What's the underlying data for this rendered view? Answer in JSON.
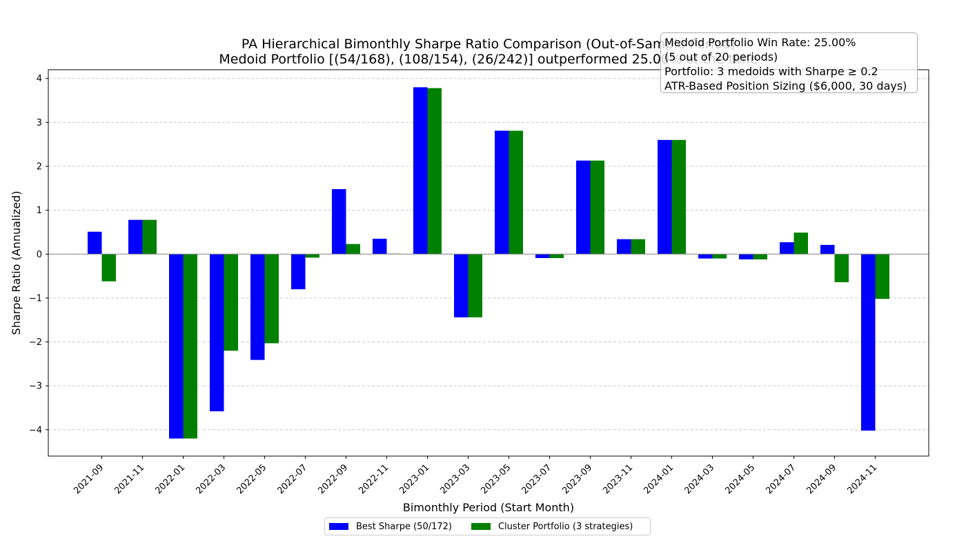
{
  "chart_data": {
    "type": "bar",
    "title": "PA Hierarchical Bimonthly Sharpe Ratio Comparison (Out-of-Sample Period)",
    "subtitle": "Medoid Portfolio [(54/168), (108/154), (26/242)] outperformed 25.00% of the time",
    "xlabel": "Bimonthly Period (Start Month)",
    "ylabel": "Sharpe Ratio (Annualized)",
    "ylim": [
      -4.6,
      4.2
    ],
    "yticks": [
      4,
      3,
      2,
      1,
      0,
      -1,
      -2,
      -3,
      -4
    ],
    "ytick_labels": [
      "4",
      "3",
      "2",
      "1",
      "0",
      "−1",
      "−2",
      "−3",
      "−4"
    ],
    "grid": true,
    "legend_position": "bottom-center",
    "categories": [
      "2021-09",
      "2021-11",
      "2022-01",
      "2022-03",
      "2022-05",
      "2022-07",
      "2022-09",
      "2022-11",
      "2023-01",
      "2023-03",
      "2023-05",
      "2023-07",
      "2023-09",
      "2023-11",
      "2024-01",
      "2024-03",
      "2024-05",
      "2024-07",
      "2024-09",
      "2024-11"
    ],
    "series": [
      {
        "name": "Best Sharpe (50/172)",
        "color": "#0000ff",
        "values": [
          0.51,
          0.78,
          -4.2,
          -3.58,
          -2.41,
          -0.8,
          1.48,
          0.35,
          3.8,
          -1.44,
          2.81,
          -0.09,
          2.13,
          0.34,
          2.6,
          -0.1,
          -0.12,
          0.27,
          0.21,
          -4.02
        ]
      },
      {
        "name": "Cluster Portfolio (3 strategies)",
        "color": "#008000",
        "values": [
          -0.62,
          0.78,
          -4.2,
          -2.2,
          -2.03,
          -0.08,
          0.23,
          0.01,
          3.78,
          -1.44,
          2.81,
          -0.09,
          2.13,
          0.34,
          2.6,
          -0.1,
          -0.12,
          0.49,
          -0.64,
          -1.02
        ]
      }
    ]
  },
  "info_box": {
    "line1": "Medoid Portfolio Win Rate: 25.00%",
    "line2": "(5 out of 20 periods)",
    "line3": "Portfolio: 3 medoids with Sharpe ≥ 0.2",
    "line4": "ATR-Based Position Sizing ($6,000, 30 days)"
  }
}
